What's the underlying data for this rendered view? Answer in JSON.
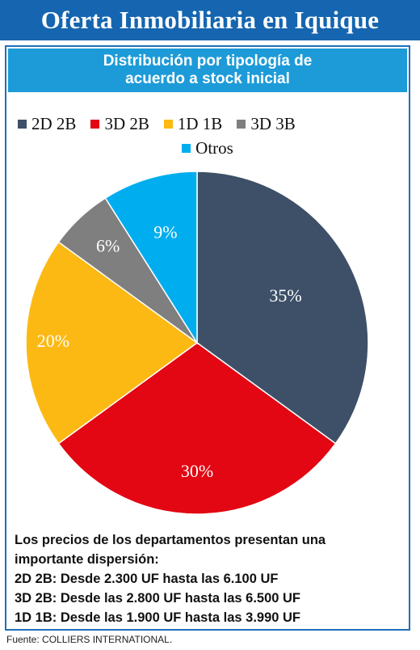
{
  "header": {
    "title": "Oferta Inmobiliaria en Iquique"
  },
  "chart_data": {
    "type": "pie",
    "title": [
      "Distribución por tipología de",
      "acuerdo a stock inicial"
    ],
    "categories": [
      "2D 2B",
      "3D 2B",
      "1D 1B",
      "3D 3B",
      "Otros"
    ],
    "values": [
      35,
      30,
      20,
      6,
      9
    ],
    "labels": [
      "35%",
      "30%",
      "20%",
      "6%",
      "9%"
    ],
    "colors": [
      "#3d5068",
      "#e30613",
      "#fdb913",
      "#7f7f7f",
      "#00aeef"
    ],
    "legend_position": "top"
  },
  "notes": [
    "Los precios de los departamentos presentan una",
    "importante dispersión:",
    "2D 2B: Desde 2.300 UF hasta las 6.100 UF",
    "3D 2B: Desde las 2.800 UF hasta las 6.500 UF",
    "1D 1B: Desde las 1.900 UF hasta las 3.990 UF"
  ],
  "source": "Fuente: COLLIERS INTERNATIONAL."
}
